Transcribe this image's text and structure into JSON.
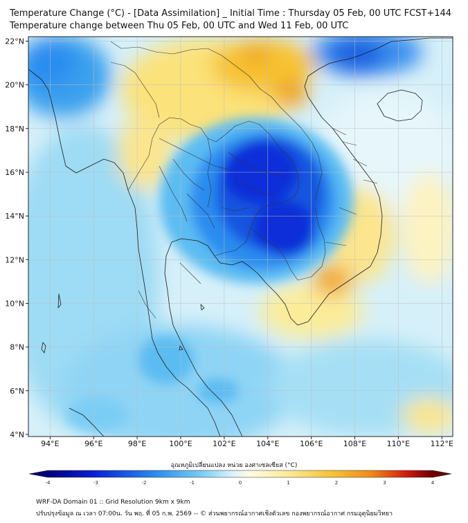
{
  "title": {
    "line1": "Temperature Change (°C) - [Data Assimilation] _ Initial Time : Thursday 05 Feb, 00 UTC FCST+144",
    "line2": "Temperature change between Thu 05 Feb, 00 UTC and Wed 11 Feb, 00 UTC"
  },
  "axes": {
    "lat_labels": [
      "22°N",
      "20°N",
      "18°N",
      "16°N",
      "14°N",
      "12°N",
      "10°N",
      "8°N",
      "6°N",
      "4°N"
    ],
    "lon_labels": [
      "94°E",
      "96°E",
      "98°E",
      "100°E",
      "102°E",
      "104°E",
      "106°E",
      "108°E",
      "110°E",
      "112°E"
    ],
    "lat_range": [
      4,
      22.3
    ],
    "lon_range": [
      93,
      112.5
    ]
  },
  "colorbar": {
    "label": "อุณหภูมิเปลี่ยนแปลง หน่วย องศาเซลเซียส (°C)",
    "ticks": [
      "-4",
      "-3",
      "-2",
      "-1",
      "0",
      "1",
      "2",
      "3",
      "4"
    ],
    "range": [
      -4,
      4
    ]
  },
  "field": {
    "units": "°C",
    "colors": {
      "strong_cold": "#0a1fd6",
      "cold": "#2a8cf0",
      "cool": "#8fd4f5",
      "neutral": "#eaf8fc",
      "warm": "#fbec9a",
      "hot": "#f7c233",
      "very_hot": "#f08a1a"
    },
    "features": [
      {
        "name": "northeast-thailand-cambodia-cold-core",
        "lon": 104.2,
        "lat": 14.2,
        "value": -3.6
      },
      {
        "name": "gulf-of-tonkin-cold",
        "lon": 109.5,
        "lat": 21.5,
        "value": -1.8
      },
      {
        "name": "myanmar-west-cool",
        "lon": 95.0,
        "lat": 20.5,
        "value": -1.6
      },
      {
        "name": "north-laos-warm",
        "lon": 103.0,
        "lat": 20.0,
        "value": 1.6
      },
      {
        "name": "north-vietnam-warm-spot",
        "lon": 105.8,
        "lat": 19.5,
        "value": 2.2
      },
      {
        "name": "south-vietnam-warm-spot",
        "lon": 107.2,
        "lat": 11.2,
        "value": 2.4
      },
      {
        "name": "south-china-sea-cool",
        "lon": 108.5,
        "lat": 7.0,
        "value": -1.2
      },
      {
        "name": "andaman-sea-cool",
        "lon": 96.0,
        "lat": 9.0,
        "value": -1.5
      }
    ]
  },
  "footer": {
    "line1": "WRF-DA Domain 01 :: Grid Resolution 9km x 9km",
    "line2": "ปรับปรุงข้อมูล ณ เวลา 07:00น. วัน พฤ. ที่ 05 ก.พ. 2569 -- © ส่วนพยากรณ์อากาศเชิงตัวเลข กองพยากรณ์อากาศ กรมอุตุนิยมวิทยา"
  },
  "icons": {
    "coastline": "coastline-outline",
    "borders": "province-borders"
  }
}
